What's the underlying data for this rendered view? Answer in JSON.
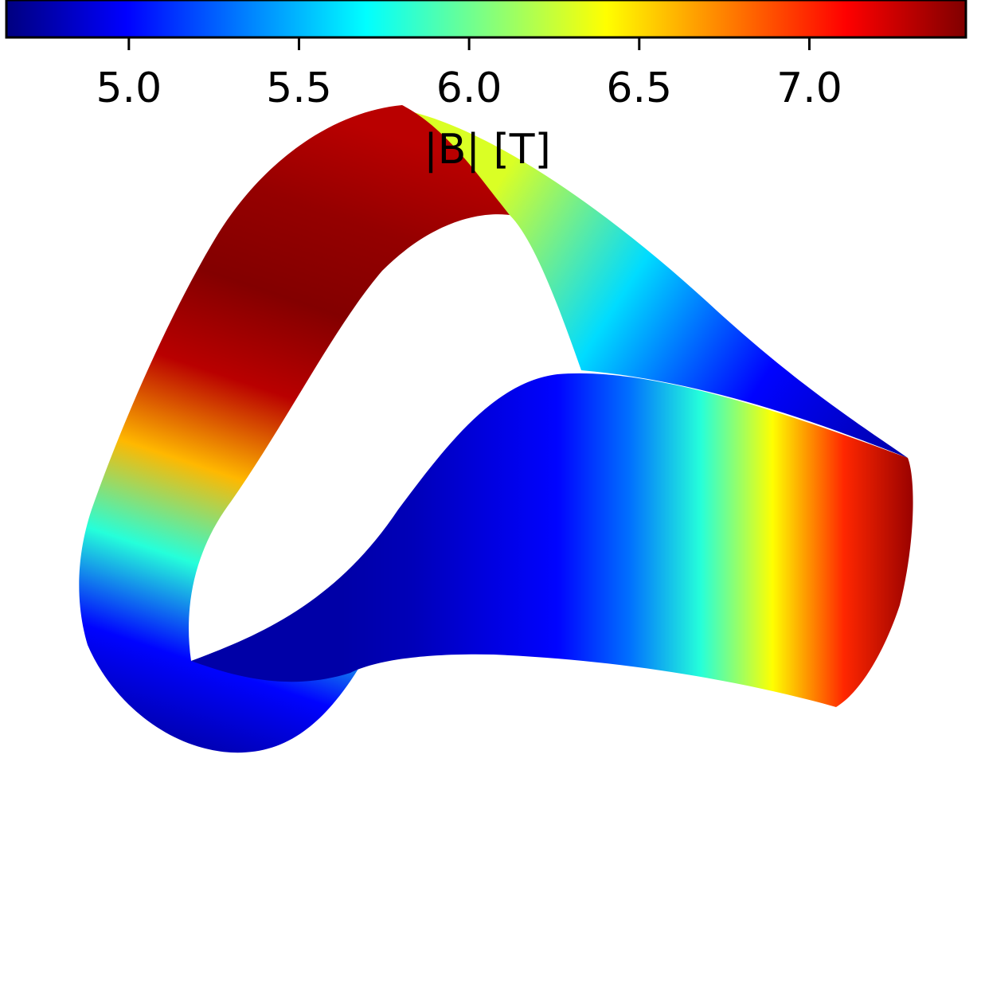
{
  "chart_data": {
    "type": "heatmap",
    "description_type": "3D surface colored by colormap",
    "colormap": "jet",
    "colorbar": {
      "label": "|B| [T]",
      "orientation": "horizontal",
      "placement": "top",
      "vmin": 4.64,
      "vmax": 7.46,
      "ticks": [
        5.0,
        5.5,
        6.0,
        6.5,
        7.0
      ],
      "tick_labels": [
        "5.0",
        "5.5",
        "6.0",
        "6.5",
        "7.0"
      ]
    },
    "surface": {
      "front_band_values_left_to_right": [
        4.75,
        4.8,
        4.9,
        5.0,
        5.3,
        5.8,
        6.4,
        7.0,
        7.4
      ],
      "rear_band_values": [
        4.75,
        5.0,
        5.6,
        6.3
      ],
      "left_band_values": [
        7.3,
        7.4,
        7.45,
        7.3,
        6.6,
        5.8,
        5.0,
        4.75
      ]
    }
  }
}
